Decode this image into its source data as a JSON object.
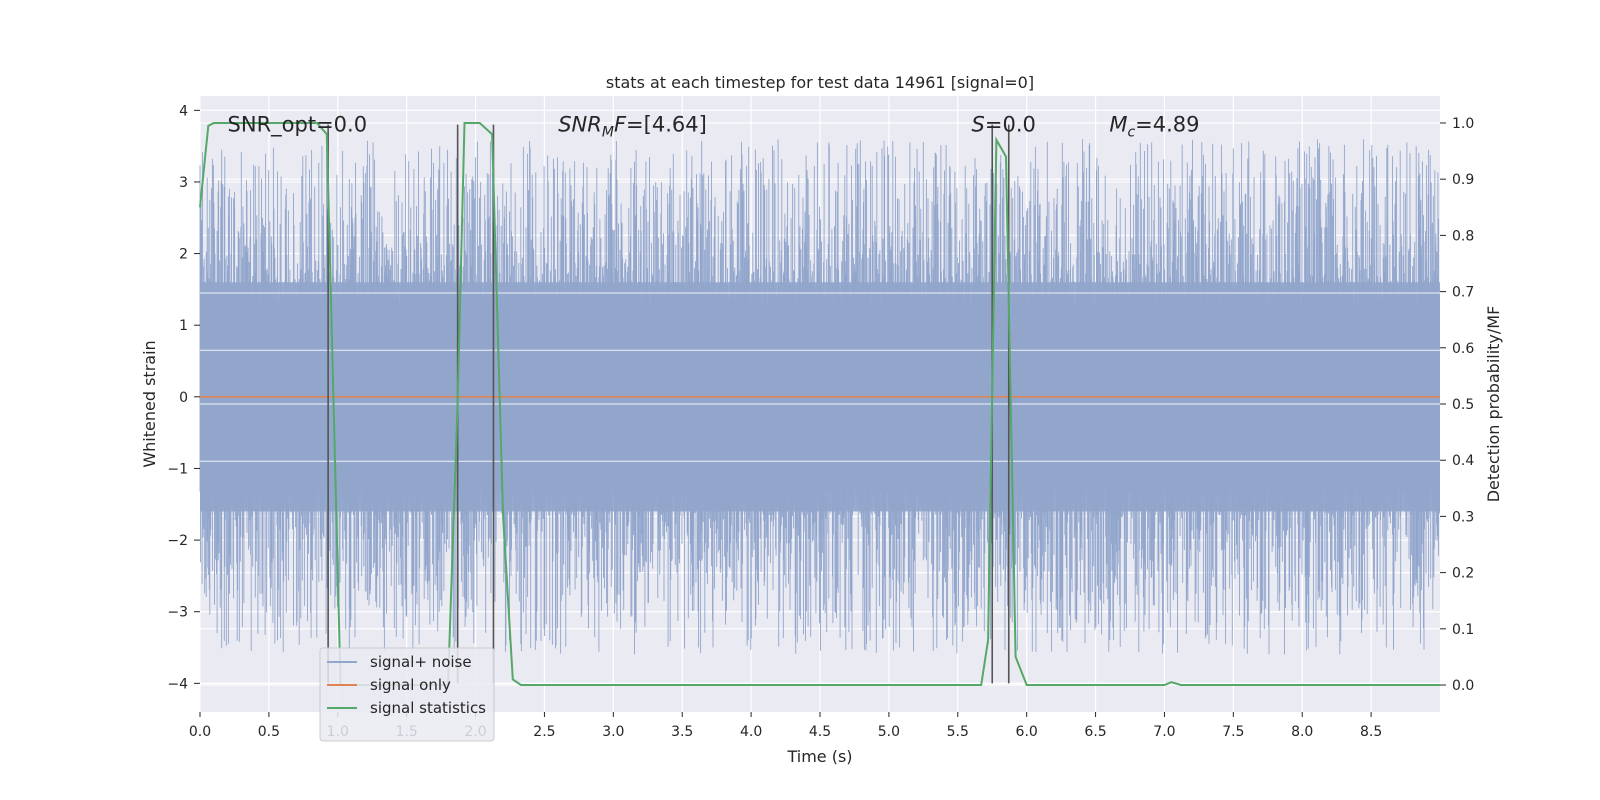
{
  "chart_data": {
    "type": "line",
    "title": "stats at each timestep for test data 14961 [signal=0]",
    "xlabel": "Time (s)",
    "ylabel": "Whitened strain",
    "y2label": "Detection probability/MF",
    "xlim": [
      0.0,
      9.0
    ],
    "ylim": [
      -4.4,
      4.2
    ],
    "y2lim": [
      -0.048,
      1.048
    ],
    "xticks": [
      0.0,
      0.5,
      1.0,
      1.5,
      2.0,
      2.5,
      3.0,
      3.5,
      4.0,
      4.5,
      5.0,
      5.5,
      6.0,
      6.5,
      7.0,
      7.5,
      8.0,
      8.5
    ],
    "xtick_labels": [
      "0.0",
      "0.5",
      "1.0",
      "1.5",
      "2.0",
      "2.5",
      "3.0",
      "3.5",
      "4.0",
      "4.5",
      "5.0",
      "5.5",
      "6.0",
      "6.5",
      "7.0",
      "7.5",
      "8.0",
      "8.5"
    ],
    "yticks": [
      4,
      3,
      2,
      1,
      0,
      -1,
      -2,
      -3,
      -4
    ],
    "ytick_labels": [
      "4",
      "3",
      "2",
      "1",
      "0",
      "−1",
      "−2",
      "−3",
      "−4"
    ],
    "y2ticks": [
      1.0,
      0.9,
      0.8,
      0.7,
      0.6,
      0.5,
      0.4,
      0.3,
      0.2,
      0.1,
      0.0
    ],
    "y2tick_labels": [
      "1.0",
      "0.9",
      "0.8",
      "0.7",
      "0.6",
      "0.5",
      "0.4",
      "0.3",
      "0.2",
      "0.1",
      "0.0"
    ],
    "grid": true,
    "legend_placement": "lower-left",
    "colors": {
      "noise": "#92a6cc",
      "signal_only": "#dd8452",
      "stats": "#55a868",
      "vlines": "#555555",
      "plot_bg": "#eaeaf2"
    },
    "annotations": [
      {
        "text": "SNR_opt=0.0",
        "x": 0.2,
        "y": 3.8
      },
      {
        "text": "SNRMF=[4.64]",
        "x": 2.6,
        "y": 3.8
      },
      {
        "text": "S=0.0",
        "x": 5.6,
        "y": 3.8
      },
      {
        "text": "Mc=4.89",
        "x": 6.6,
        "y": 3.8
      }
    ],
    "vlines": [
      0.93,
      1.87,
      2.13,
      5.75,
      5.87
    ],
    "vline_top": 3.8,
    "series": [
      {
        "name": "signal+ noise",
        "description": "whitened noise, dense",
        "amplitude_core": 1.6,
        "amplitude_max": 3.6
      },
      {
        "name": "signal only",
        "x": [
          0.0,
          9.0
        ],
        "y": [
          0.0,
          0.0
        ]
      },
      {
        "name": "signal statistics",
        "axis": "right",
        "x": [
          0.0,
          0.06,
          0.1,
          0.85,
          0.92,
          0.98,
          1.02,
          1.8,
          1.87,
          1.92,
          2.03,
          2.12,
          2.2,
          2.27,
          2.33,
          5.67,
          5.72,
          5.78,
          5.85,
          5.92,
          6.0,
          7.0,
          7.05,
          7.12,
          9.0
        ],
        "y": [
          0.85,
          0.995,
          1.0,
          1.0,
          0.98,
          0.4,
          0.0,
          0.0,
          0.5,
          1.0,
          1.0,
          0.98,
          0.3,
          0.01,
          0.0,
          0.0,
          0.08,
          0.97,
          0.94,
          0.05,
          0.0,
          0.0,
          0.005,
          0.0,
          0.0
        ]
      }
    ]
  }
}
